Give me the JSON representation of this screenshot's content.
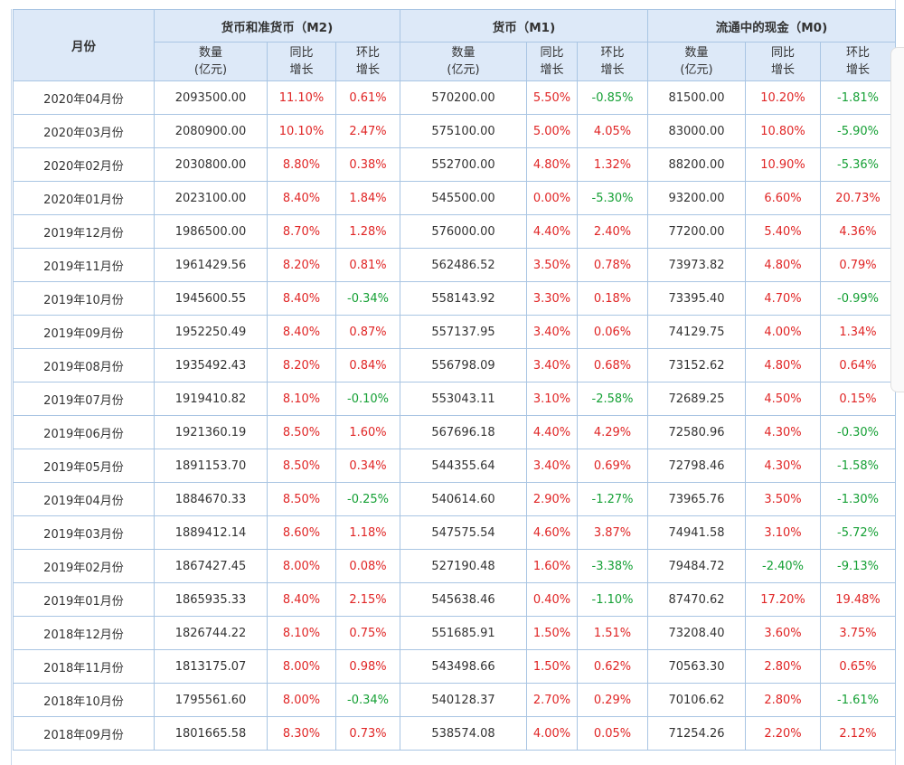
{
  "header": {
    "month_label": "月份",
    "groups": [
      {
        "title": "货币和准货币（M2)"
      },
      {
        "title": "货币（M1)"
      },
      {
        "title": "流通中的现金（M0)"
      }
    ],
    "sub": {
      "amount_top": "数量",
      "amount_bottom": "(亿元)",
      "yoy_top": "同比",
      "yoy_bottom": "增长",
      "mom_top": "环比",
      "mom_bottom": "增长"
    }
  },
  "rows": [
    {
      "month": "2020年04月份",
      "m2": "2093500.00",
      "m2_yoy": "11.10%",
      "m2_mom": "0.61%",
      "m1": "570200.00",
      "m1_yoy": "5.50%",
      "m1_mom": "-0.85%",
      "m0": "81500.00",
      "m0_yoy": "10.20%",
      "m0_mom": "-1.81%"
    },
    {
      "month": "2020年03月份",
      "m2": "2080900.00",
      "m2_yoy": "10.10%",
      "m2_mom": "2.47%",
      "m1": "575100.00",
      "m1_yoy": "5.00%",
      "m1_mom": "4.05%",
      "m0": "83000.00",
      "m0_yoy": "10.80%",
      "m0_mom": "-5.90%"
    },
    {
      "month": "2020年02月份",
      "m2": "2030800.00",
      "m2_yoy": "8.80%",
      "m2_mom": "0.38%",
      "m1": "552700.00",
      "m1_yoy": "4.80%",
      "m1_mom": "1.32%",
      "m0": "88200.00",
      "m0_yoy": "10.90%",
      "m0_mom": "-5.36%"
    },
    {
      "month": "2020年01月份",
      "m2": "2023100.00",
      "m2_yoy": "8.40%",
      "m2_mom": "1.84%",
      "m1": "545500.00",
      "m1_yoy": "0.00%",
      "m1_mom": "-5.30%",
      "m0": "93200.00",
      "m0_yoy": "6.60%",
      "m0_mom": "20.73%"
    },
    {
      "month": "2019年12月份",
      "m2": "1986500.00",
      "m2_yoy": "8.70%",
      "m2_mom": "1.28%",
      "m1": "576000.00",
      "m1_yoy": "4.40%",
      "m1_mom": "2.40%",
      "m0": "77200.00",
      "m0_yoy": "5.40%",
      "m0_mom": "4.36%"
    },
    {
      "month": "2019年11月份",
      "m2": "1961429.56",
      "m2_yoy": "8.20%",
      "m2_mom": "0.81%",
      "m1": "562486.52",
      "m1_yoy": "3.50%",
      "m1_mom": "0.78%",
      "m0": "73973.82",
      "m0_yoy": "4.80%",
      "m0_mom": "0.79%"
    },
    {
      "month": "2019年10月份",
      "m2": "1945600.55",
      "m2_yoy": "8.40%",
      "m2_mom": "-0.34%",
      "m1": "558143.92",
      "m1_yoy": "3.30%",
      "m1_mom": "0.18%",
      "m0": "73395.40",
      "m0_yoy": "4.70%",
      "m0_mom": "-0.99%"
    },
    {
      "month": "2019年09月份",
      "m2": "1952250.49",
      "m2_yoy": "8.40%",
      "m2_mom": "0.87%",
      "m1": "557137.95",
      "m1_yoy": "3.40%",
      "m1_mom": "0.06%",
      "m0": "74129.75",
      "m0_yoy": "4.00%",
      "m0_mom": "1.34%"
    },
    {
      "month": "2019年08月份",
      "m2": "1935492.43",
      "m2_yoy": "8.20%",
      "m2_mom": "0.84%",
      "m1": "556798.09",
      "m1_yoy": "3.40%",
      "m1_mom": "0.68%",
      "m0": "73152.62",
      "m0_yoy": "4.80%",
      "m0_mom": "0.64%"
    },
    {
      "month": "2019年07月份",
      "m2": "1919410.82",
      "m2_yoy": "8.10%",
      "m2_mom": "-0.10%",
      "m1": "553043.11",
      "m1_yoy": "3.10%",
      "m1_mom": "-2.58%",
      "m0": "72689.25",
      "m0_yoy": "4.50%",
      "m0_mom": "0.15%"
    },
    {
      "month": "2019年06月份",
      "m2": "1921360.19",
      "m2_yoy": "8.50%",
      "m2_mom": "1.60%",
      "m1": "567696.18",
      "m1_yoy": "4.40%",
      "m1_mom": "4.29%",
      "m0": "72580.96",
      "m0_yoy": "4.30%",
      "m0_mom": "-0.30%"
    },
    {
      "month": "2019年05月份",
      "m2": "1891153.70",
      "m2_yoy": "8.50%",
      "m2_mom": "0.34%",
      "m1": "544355.64",
      "m1_yoy": "3.40%",
      "m1_mom": "0.69%",
      "m0": "72798.46",
      "m0_yoy": "4.30%",
      "m0_mom": "-1.58%"
    },
    {
      "month": "2019年04月份",
      "m2": "1884670.33",
      "m2_yoy": "8.50%",
      "m2_mom": "-0.25%",
      "m1": "540614.60",
      "m1_yoy": "2.90%",
      "m1_mom": "-1.27%",
      "m0": "73965.76",
      "m0_yoy": "3.50%",
      "m0_mom": "-1.30%"
    },
    {
      "month": "2019年03月份",
      "m2": "1889412.14",
      "m2_yoy": "8.60%",
      "m2_mom": "1.18%",
      "m1": "547575.54",
      "m1_yoy": "4.60%",
      "m1_mom": "3.87%",
      "m0": "74941.58",
      "m0_yoy": "3.10%",
      "m0_mom": "-5.72%"
    },
    {
      "month": "2019年02月份",
      "m2": "1867427.45",
      "m2_yoy": "8.00%",
      "m2_mom": "0.08%",
      "m1": "527190.48",
      "m1_yoy": "1.60%",
      "m1_mom": "-3.38%",
      "m0": "79484.72",
      "m0_yoy": "-2.40%",
      "m0_mom": "-9.13%"
    },
    {
      "month": "2019年01月份",
      "m2": "1865935.33",
      "m2_yoy": "8.40%",
      "m2_mom": "2.15%",
      "m1": "545638.46",
      "m1_yoy": "0.40%",
      "m1_mom": "-1.10%",
      "m0": "87470.62",
      "m0_yoy": "17.20%",
      "m0_mom": "19.48%"
    },
    {
      "month": "2018年12月份",
      "m2": "1826744.22",
      "m2_yoy": "8.10%",
      "m2_mom": "0.75%",
      "m1": "551685.91",
      "m1_yoy": "1.50%",
      "m1_mom": "1.51%",
      "m0": "73208.40",
      "m0_yoy": "3.60%",
      "m0_mom": "3.75%"
    },
    {
      "month": "2018年11月份",
      "m2": "1813175.07",
      "m2_yoy": "8.00%",
      "m2_mom": "0.98%",
      "m1": "543498.66",
      "m1_yoy": "1.50%",
      "m1_mom": "0.62%",
      "m0": "70563.30",
      "m0_yoy": "2.80%",
      "m0_mom": "0.65%"
    },
    {
      "month": "2018年10月份",
      "m2": "1795561.60",
      "m2_yoy": "8.00%",
      "m2_mom": "-0.34%",
      "m1": "540128.37",
      "m1_yoy": "2.70%",
      "m1_mom": "0.29%",
      "m0": "70106.62",
      "m0_yoy": "2.80%",
      "m0_mom": "-1.61%"
    },
    {
      "month": "2018年09月份",
      "m2": "1801665.58",
      "m2_yoy": "8.30%",
      "m2_mom": "0.73%",
      "m1": "538574.08",
      "m1_yoy": "4.00%",
      "m1_mom": "0.05%",
      "m0": "71254.26",
      "m0_yoy": "2.20%",
      "m0_mom": "2.12%"
    }
  ],
  "colors": {
    "header_bg": "#dde9f8",
    "border": "#a9c5e3",
    "positive": "#e02525",
    "negative": "#15a035",
    "text": "#333333"
  }
}
